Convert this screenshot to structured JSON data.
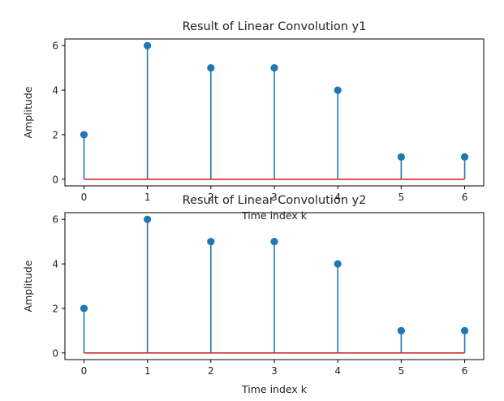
{
  "chart_data": [
    {
      "type": "stem",
      "title": "Result of Linear Convolution y1",
      "xlabel": "Time index k",
      "ylabel": "Amplitude",
      "x": [
        0,
        1,
        2,
        3,
        4,
        5,
        6
      ],
      "y": [
        2,
        6,
        5,
        5,
        4,
        1,
        1
      ],
      "xticks": [
        "0",
        "1",
        "2",
        "3",
        "4",
        "5",
        "6"
      ],
      "yticks": [
        "0",
        "2",
        "4",
        "6"
      ],
      "xlim": [
        -0.3,
        6.3
      ],
      "ylim": [
        -0.3,
        6.3
      ],
      "grid": false,
      "stem_color": "#1f77b4",
      "baseline_color": "#d62728"
    },
    {
      "type": "stem",
      "title": "Result of Linear Convolution y2",
      "xlabel": "Time index k",
      "ylabel": "Amplitude",
      "x": [
        0,
        1,
        2,
        3,
        4,
        5,
        6
      ],
      "y": [
        2,
        6,
        5,
        5,
        4,
        1,
        1
      ],
      "xticks": [
        "0",
        "1",
        "2",
        "3",
        "4",
        "5",
        "6"
      ],
      "yticks": [
        "0",
        "2",
        "4",
        "6"
      ],
      "xlim": [
        -0.3,
        6.3
      ],
      "ylim": [
        -0.3,
        6.3
      ],
      "grid": false,
      "stem_color": "#1f77b4",
      "baseline_color": "#d62728"
    }
  ]
}
